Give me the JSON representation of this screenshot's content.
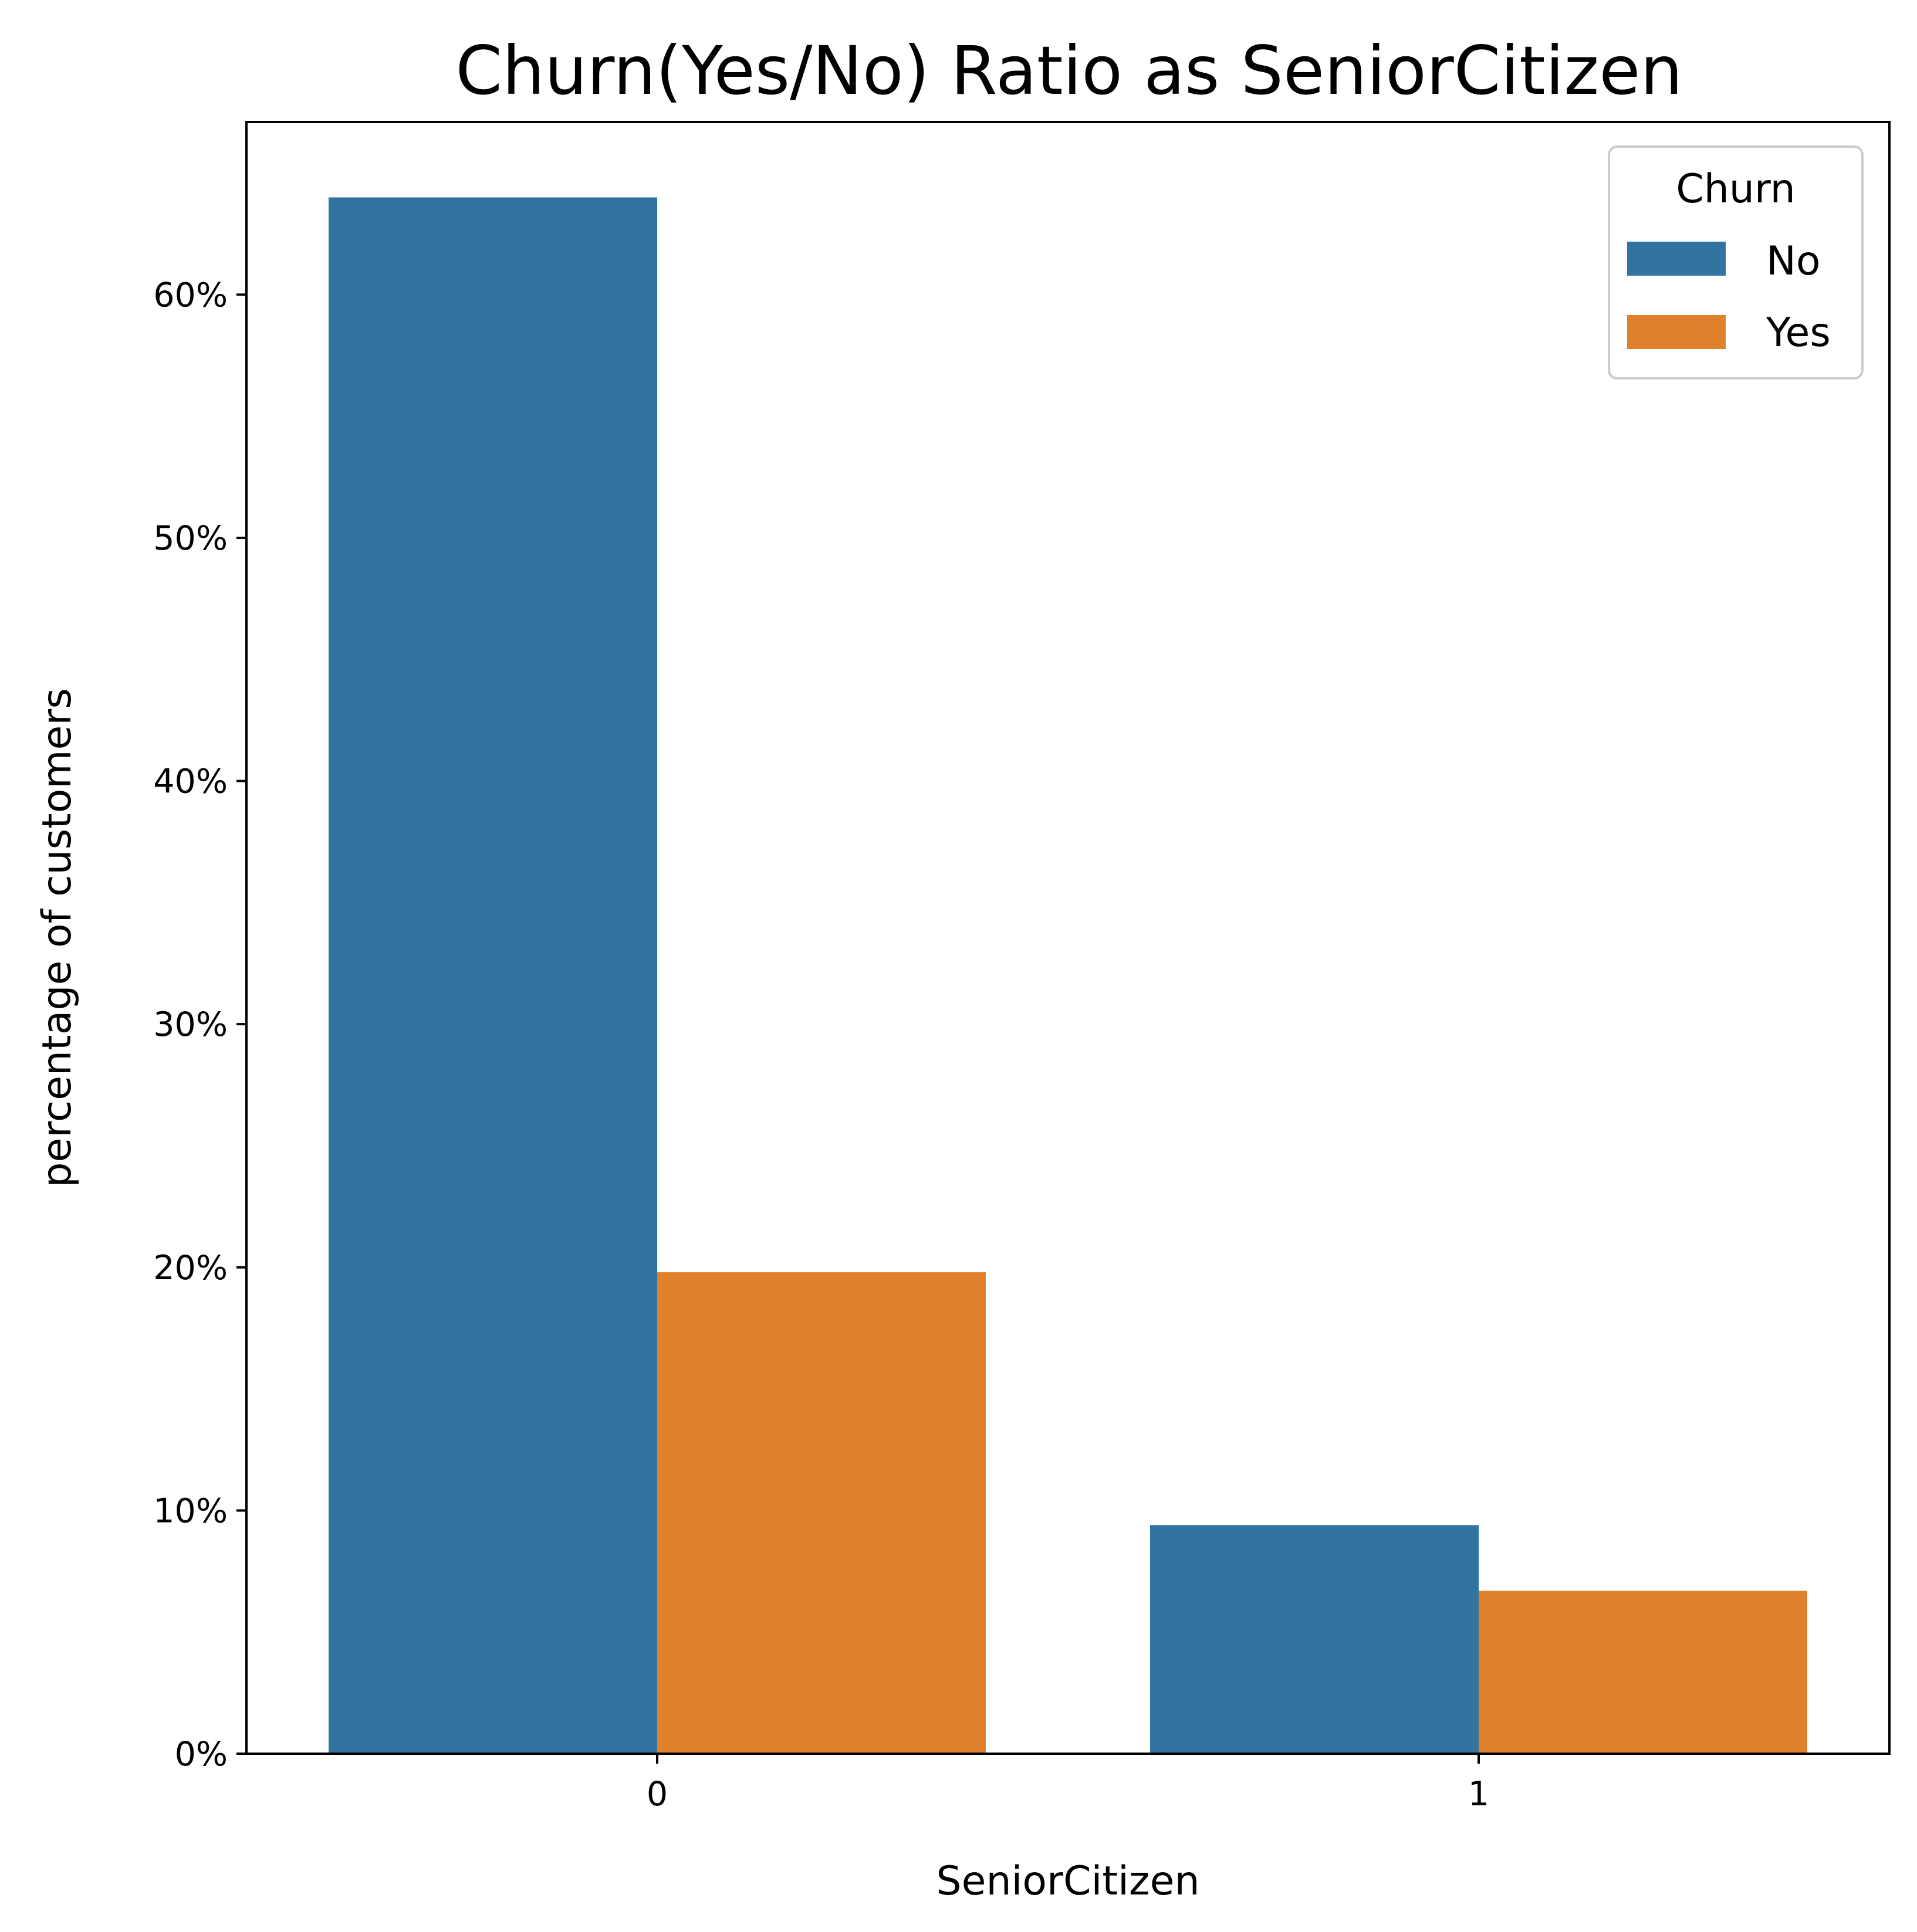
{
  "chart_data": {
    "type": "bar",
    "title": "Churn(Yes/No) Ratio as SeniorCitizen",
    "xlabel": "SeniorCitizen",
    "ylabel": "percentage of customers",
    "categories": [
      "0",
      "1"
    ],
    "series": [
      {
        "name": "No",
        "color": "#3274a1",
        "values": [
          64.0,
          9.4
        ]
      },
      {
        "name": "Yes",
        "color": "#e1812c",
        "values": [
          19.8,
          6.7
        ]
      }
    ],
    "ylim": [
      0,
      67.1
    ],
    "yticks": [
      0,
      10,
      20,
      30,
      40,
      50,
      60
    ],
    "ytick_labels": [
      "0%",
      "10%",
      "20%",
      "30%",
      "40%",
      "50%",
      "60%"
    ],
    "grid": false,
    "legend": {
      "title": "Churn",
      "placement": "top-right"
    }
  }
}
